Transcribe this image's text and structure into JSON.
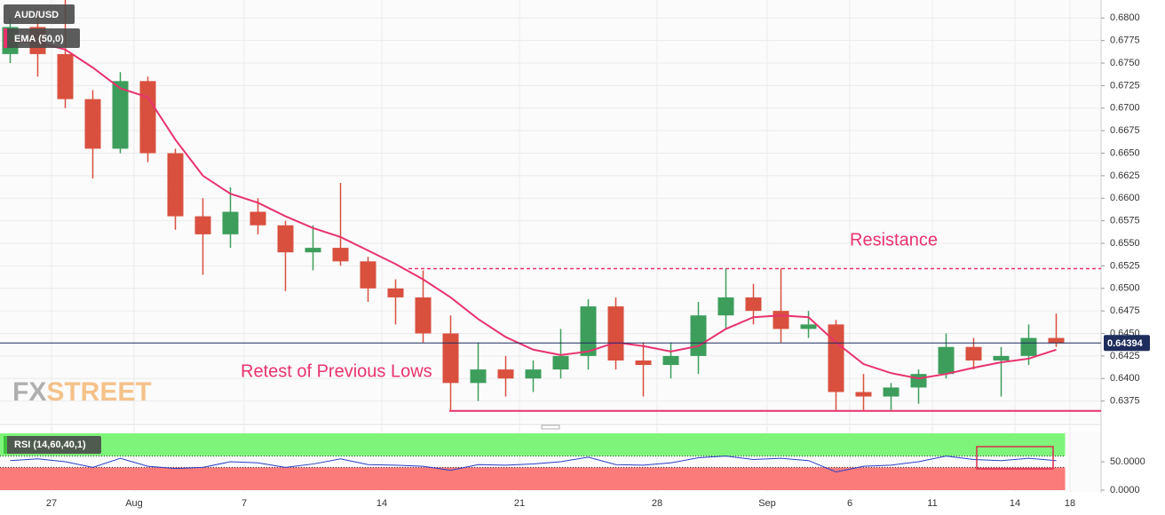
{
  "chart_data": {
    "type": "candlestick",
    "title": "AUD/USD",
    "categories": [
      null,
      null,
      "27",
      null,
      null,
      "Aug",
      null,
      null,
      null,
      "7",
      null,
      null,
      null,
      null,
      "14",
      null,
      null,
      null,
      null,
      "21",
      null,
      null,
      null,
      null,
      "28",
      null,
      null,
      null,
      "Sep",
      null,
      null,
      "6",
      null,
      null,
      "11",
      null,
      null,
      "14",
      null,
      "18"
    ],
    "open": [
      0.676,
      0.679,
      0.676,
      0.671,
      0.6655,
      0.673,
      0.665,
      0.658,
      0.656,
      0.6585,
      0.657,
      0.654,
      0.6545,
      0.653,
      0.65,
      0.649,
      0.645,
      0.6395,
      0.641,
      0.64,
      0.641,
      0.6425,
      0.648,
      0.642,
      0.6415,
      0.6425,
      0.647,
      0.649,
      0.6475,
      0.6455,
      0.646,
      0.6385,
      0.638,
      0.639,
      0.6405,
      0.6435,
      0.642,
      0.6425,
      0.6445,
      null
    ],
    "high": [
      0.68,
      0.681,
      0.6822,
      0.672,
      0.674,
      0.6735,
      0.6655,
      0.66,
      0.6612,
      0.66,
      0.6575,
      0.657,
      0.6617,
      0.6535,
      0.651,
      0.652,
      0.647,
      0.644,
      0.6425,
      0.642,
      0.6455,
      0.6488,
      0.649,
      0.644,
      0.644,
      0.6485,
      0.6522,
      0.6505,
      0.6522,
      0.6475,
      0.6465,
      0.6405,
      0.6395,
      0.641,
      0.645,
      0.6445,
      0.6435,
      0.646,
      0.6472,
      null
    ],
    "low": [
      0.675,
      0.6735,
      0.67,
      0.6622,
      0.665,
      0.664,
      0.6565,
      0.6515,
      0.6545,
      0.656,
      0.6497,
      0.652,
      0.6525,
      0.6485,
      0.646,
      0.644,
      0.6365,
      0.6375,
      0.638,
      0.6385,
      0.64,
      0.641,
      0.641,
      0.638,
      0.64,
      0.6405,
      0.6455,
      0.646,
      0.644,
      0.6445,
      0.6365,
      0.6365,
      0.6365,
      0.6372,
      0.64,
      0.641,
      0.638,
      0.6415,
      0.6435,
      null
    ],
    "close": [
      0.679,
      0.676,
      0.671,
      0.6655,
      0.673,
      0.665,
      0.658,
      0.656,
      0.6585,
      0.657,
      0.654,
      0.6545,
      0.653,
      0.65,
      0.649,
      0.645,
      0.6395,
      0.641,
      0.64,
      0.641,
      0.6425,
      0.648,
      0.642,
      0.6415,
      0.6425,
      0.647,
      0.649,
      0.6475,
      0.6455,
      0.646,
      0.6385,
      0.638,
      0.639,
      0.6405,
      0.6435,
      0.642,
      0.6425,
      0.6445,
      0.6439,
      null
    ],
    "up_color": "#3d9e5c",
    "down_color": "#d9503f",
    "ema": {
      "name": "EMA (50,0)",
      "color": "#e8336d",
      "values": [
        0.6775,
        0.6773,
        0.6765,
        0.6745,
        0.6722,
        0.6712,
        0.6665,
        0.6625,
        0.6605,
        0.6595,
        0.658,
        0.6567,
        0.6557,
        0.6542,
        0.6527,
        0.651,
        0.649,
        0.6466,
        0.6446,
        0.6432,
        0.6426,
        0.643,
        0.644,
        0.6436,
        0.643,
        0.6436,
        0.6455,
        0.6468,
        0.647,
        0.6468,
        0.644,
        0.6416,
        0.6406,
        0.64,
        0.6405,
        0.6412,
        0.6418,
        0.6422,
        0.6432,
        null
      ]
    },
    "last_price": 0.64394,
    "ylim": [
      0.6351,
      0.682
    ],
    "yticks": [
      0.6375,
      {
        "value": 0.64,
        "label": "0.6400"
      },
      0.6425,
      {
        "value": 0.645,
        "label": "0.6450"
      },
      0.6475,
      {
        "value": 0.65,
        "label": "0.6500"
      },
      0.6525,
      {
        "value": 0.655,
        "label": "0.6550"
      },
      0.6575,
      {
        "value": 0.66,
        "label": "0.6600"
      },
      0.6625,
      {
        "value": 0.665,
        "label": "0.6650"
      },
      0.6675,
      {
        "value": 0.67,
        "label": "0.6700"
      },
      0.6725,
      {
        "value": 0.675,
        "label": "0.6750"
      },
      0.6775,
      {
        "value": 0.68,
        "label": "0.6800"
      }
    ],
    "grid": true,
    "annotations": [
      {
        "text": "Resistance",
        "level": 0.6522
      },
      {
        "text": "Retest of Previous Lows",
        "level": 0.6364
      }
    ],
    "rsi": {
      "name": "RSI (14,60,40,1)",
      "color": "#2b3fc7",
      "values": [
        52,
        55,
        50,
        40,
        56,
        42,
        38,
        40,
        50,
        48,
        40,
        46,
        55,
        45,
        44,
        42,
        35,
        45,
        44,
        46,
        50,
        58,
        45,
        44,
        48,
        57,
        60,
        54,
        56,
        52,
        32,
        42,
        44,
        50,
        60,
        54,
        52,
        56,
        52,
        null
      ],
      "upper": 60,
      "lower": 40,
      "ylim": [
        0,
        100
      ],
      "yticks": [
        {
          "value": 50,
          "label": "50.0000"
        },
        {
          "value": 0,
          "label": "0.0000"
        }
      ]
    },
    "logo": {
      "fx": "FX",
      "street": "STREET"
    }
  }
}
